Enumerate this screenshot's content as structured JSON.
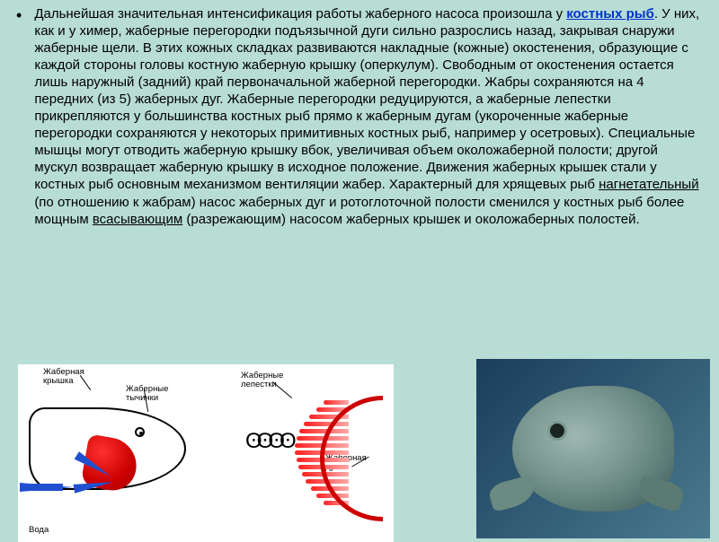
{
  "paragraph": {
    "p1": "Дальнейшая значительная интенсификация работы жаберного насоса произошла у ",
    "link1": "костных рыб",
    "p2": ". У них, как и у химер, жаберные перегородки подъязычной дуги сильно разрослись назад, закрывая снаружи жаберные щели. В этих кожных складках развиваются накладные (кожные) окостенения, образующие с каждой стороны головы костную жаберную крышку (оперкулум). Свободным от окостенения остается лишь наружный (задний) край первоначальной жаберной перегородки. Жабры сохраняются на 4 передних (из 5) жаберных дуг. Жаберные перегородки редуцируются, а жаберные лепестки прикрепляются у большинства костных рыб прямо к жаберным дугам (укороченные жаберные перегородки сохраняются у некоторых примитивных костных рыб, например у осетровых). Специальные мышцы могут отводить жаберную крышку вбок, увеличивая объем околожаберной полости; другой мускул возвращает жаберную крышку в исходное положение. Движения жаберных крышек стали у костных рыб основным механизмом вентиляции жабер. Характерный для хрящевых рыб ",
    "u1": "нагнетательный",
    "p3": " (по отношению к жабрам) насос жаберных дуг и ротоглоточной полости сменился у костных рыб более мощным ",
    "u2": "всасывающим",
    "p4": " (разрежающим) насосом жаберных крышек и околожаберных полостей."
  },
  "diagram": {
    "label_cover": "Жаберная\nкрышка",
    "label_stamens": "Жаберные\nтычинки",
    "label_petals": "Жаберные\nлепестки",
    "label_arc": "Жаберная\nдуга",
    "label_water": "Вода"
  },
  "colors": {
    "page_bg": "#b8ddd4",
    "text": "#000000",
    "link": "#0033cc",
    "gill_red": "#cc0000",
    "arrow_blue": "#2050d0",
    "photo_bg": "#2d5570",
    "fish_photo": "#7a9890"
  }
}
